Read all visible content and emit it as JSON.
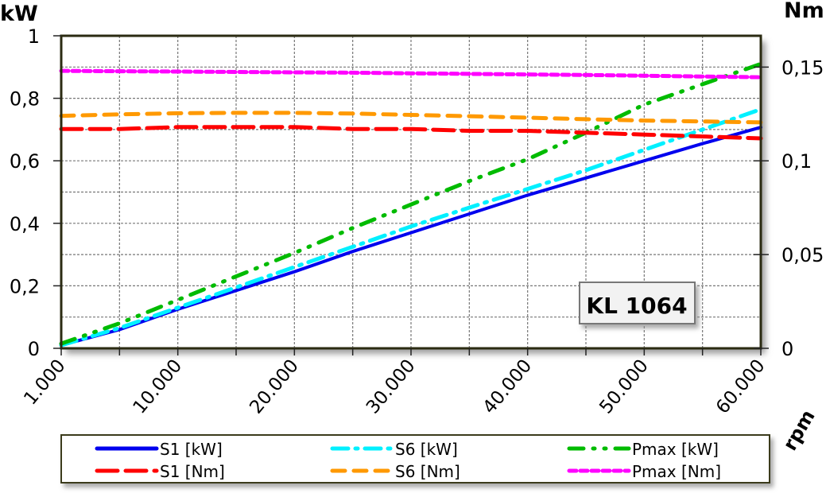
{
  "chart_data": {
    "type": "line",
    "title": "",
    "label_box": "KL 1064",
    "xlabel": "rpm",
    "ylabel_left": "kW",
    "ylabel_right": "Nm",
    "x": [
      1000,
      5000,
      10000,
      15000,
      20000,
      25000,
      30000,
      35000,
      40000,
      45000,
      50000,
      55000,
      60000
    ],
    "x_tick_labels": [
      "1.000",
      "10.000",
      "20.000",
      "30.000",
      "40.000",
      "50.000",
      "60.000"
    ],
    "x_tick_label_values": [
      1000,
      10000,
      20000,
      30000,
      40000,
      50000,
      60000
    ],
    "ylim_left": [
      0,
      1
    ],
    "yticks_left": [
      "0",
      "0,2",
      "0,4",
      "0,6",
      "0,8",
      "1"
    ],
    "yticks_left_values": [
      0,
      0.2,
      0.4,
      0.6,
      0.8,
      1
    ],
    "ylim_right": [
      0,
      0.1667
    ],
    "yticks_right": [
      "0",
      "0,05",
      "0,1",
      "0,15"
    ],
    "yticks_right_values": [
      0,
      0.05,
      0.1,
      0.15
    ],
    "grid": true,
    "legend_placement": "bottom",
    "series": [
      {
        "name": "S1 [kW]",
        "axis": "left",
        "color": "#0000ee",
        "style": "solid",
        "values": [
          0.01,
          0.06,
          0.125,
          0.185,
          0.245,
          0.31,
          0.37,
          0.43,
          0.49,
          0.545,
          0.6,
          0.655,
          0.707
        ]
      },
      {
        "name": "S6 [kW]",
        "axis": "left",
        "color": "#00f0ff",
        "style": "dash-dot",
        "values": [
          0.01,
          0.065,
          0.13,
          0.195,
          0.26,
          0.325,
          0.39,
          0.45,
          0.51,
          0.57,
          0.635,
          0.7,
          0.765
        ]
      },
      {
        "name": "Pmax [kW]",
        "axis": "left",
        "color": "#00bb00",
        "style": "dash-dot-dot",
        "values": [
          0.015,
          0.08,
          0.155,
          0.23,
          0.305,
          0.385,
          0.46,
          0.535,
          0.605,
          0.69,
          0.78,
          0.845,
          0.91
        ]
      },
      {
        "name": "S1 [Nm]",
        "axis": "right",
        "color": "#ff0000",
        "style": "long-dash",
        "values": [
          0.117,
          0.117,
          0.118,
          0.118,
          0.118,
          0.117,
          0.117,
          0.116,
          0.116,
          0.115,
          0.114,
          0.113,
          0.112
        ]
      },
      {
        "name": "S6 [Nm]",
        "axis": "right",
        "color": "#ff9900",
        "style": "dash",
        "values": [
          0.124,
          0.1248,
          0.1254,
          0.1256,
          0.1256,
          0.1252,
          0.1245,
          0.1238,
          0.123,
          0.1222,
          0.1215,
          0.121,
          0.1205
        ]
      },
      {
        "name": "Pmax [Nm]",
        "axis": "right",
        "color": "#ff00ff",
        "style": "short-dash",
        "values": [
          0.148,
          0.1478,
          0.1476,
          0.1474,
          0.1472,
          0.147,
          0.1467,
          0.1464,
          0.1461,
          0.1458,
          0.1454,
          0.145,
          0.1446
        ]
      }
    ]
  }
}
